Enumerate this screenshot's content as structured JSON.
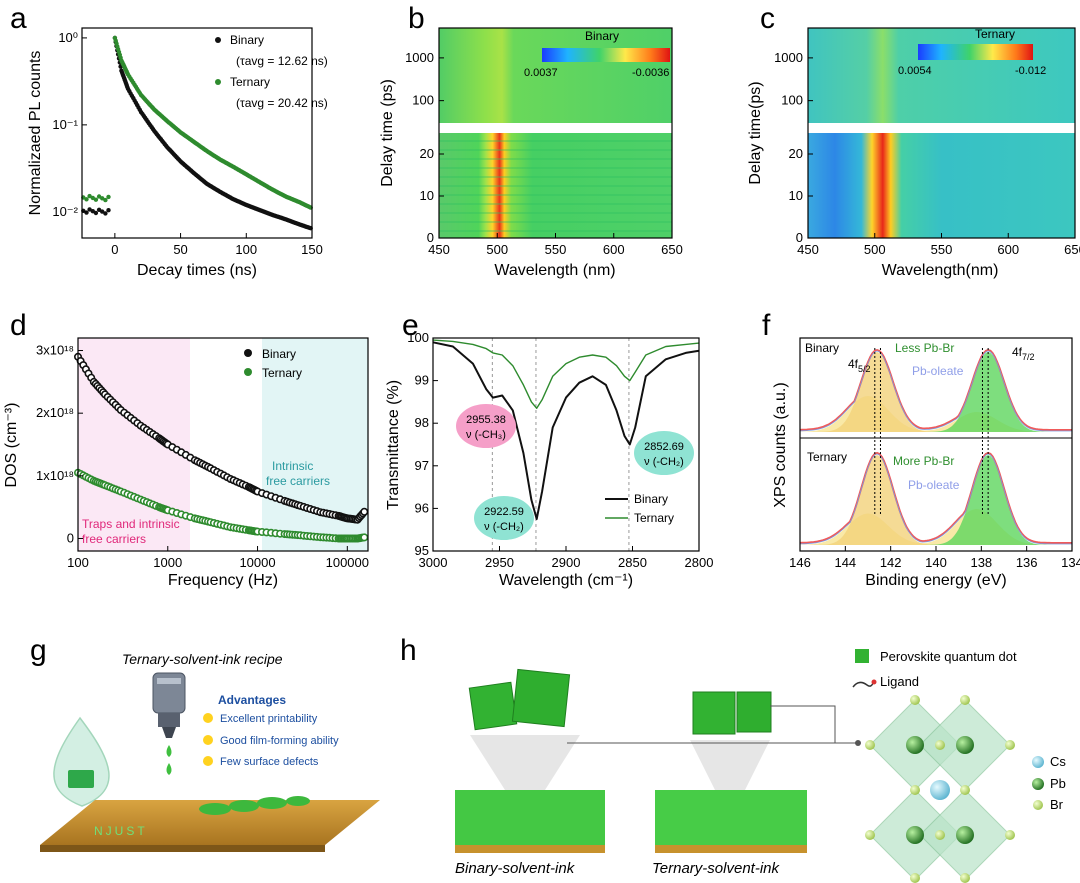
{
  "panel_letters": [
    "a",
    "b",
    "c",
    "d",
    "e",
    "f",
    "g",
    "h"
  ],
  "chart_data": [
    {
      "panel": "a",
      "type": "scatter",
      "xlabel": "Decay times (ns)",
      "ylabel": "Normalizaed PL counts",
      "xlim": [
        -25,
        150
      ],
      "ylim": [
        0.005,
        1.3
      ],
      "yscale": "log",
      "xticks": [
        "0",
        "50",
        "100",
        "150"
      ],
      "yticks": [
        "10⁻²",
        "10⁻¹",
        "10⁰"
      ],
      "series": [
        {
          "name": "Binary",
          "annotation": "(τavg = 12.62 ns)",
          "color": "#111111",
          "tau": 12.62,
          "x": [
            0,
            5,
            10,
            20,
            30,
            40,
            50,
            60,
            70,
            80,
            90,
            100,
            110,
            120,
            130,
            140,
            150
          ],
          "y": [
            1.0,
            0.42,
            0.26,
            0.14,
            0.085,
            0.055,
            0.038,
            0.028,
            0.021,
            0.017,
            0.014,
            0.012,
            0.0105,
            0.0092,
            0.0082,
            0.0072,
            0.0064
          ]
        },
        {
          "name": "Ternary",
          "annotation": "(τavg = 20.42 ns)",
          "color": "#2e8b2e",
          "tau": 20.42,
          "x": [
            0,
            5,
            10,
            20,
            30,
            40,
            50,
            60,
            70,
            80,
            90,
            100,
            110,
            120,
            130,
            140,
            150
          ],
          "y": [
            1.0,
            0.55,
            0.38,
            0.22,
            0.15,
            0.11,
            0.082,
            0.064,
            0.05,
            0.04,
            0.033,
            0.027,
            0.022,
            0.018,
            0.015,
            0.013,
            0.011
          ]
        }
      ],
      "pre_zero": {
        "binary_y": 0.0095,
        "ternary_y": 0.0135
      }
    },
    {
      "panel": "b",
      "type": "heatmap",
      "title": "Binary",
      "xlabel": "Wavelength (nm)",
      "ylabel": "Delay time (ps)",
      "xlim": [
        450,
        650
      ],
      "xticks": [
        "450",
        "500",
        "550",
        "600",
        "650"
      ],
      "yticks_lower": [
        "0",
        "10",
        "20"
      ],
      "yticks_upper": [
        "100",
        "1000"
      ],
      "colorbar": {
        "min_label": "0.0037",
        "max_label": "-0.0036"
      },
      "peak_nm": 503
    },
    {
      "panel": "c",
      "type": "heatmap",
      "title": "Ternary",
      "xlabel": "Wavelength(nm)",
      "ylabel": "Delay time(ps)",
      "xlim": [
        450,
        650
      ],
      "xticks": [
        "450",
        "500",
        "550",
        "600",
        "650"
      ],
      "yticks_lower": [
        "0",
        "10",
        "20"
      ],
      "yticks_upper": [
        "100",
        "1000"
      ],
      "colorbar": {
        "min_label": "0.0054",
        "max_label": "-0.012"
      },
      "peak_nm": 508
    },
    {
      "panel": "d",
      "type": "scatter",
      "xlabel": "Frequency (Hz)",
      "ylabel": "DOS (cm⁻³)",
      "xscale": "log",
      "xlim": [
        100,
        170000
      ],
      "ylim": [
        -0.2,
        3.2
      ],
      "xticks": [
        "100",
        "1000",
        "10000",
        "100000"
      ],
      "yticks": [
        "0",
        "1x10¹⁸",
        "2x10¹⁸",
        "3x10¹⁸"
      ],
      "regions": [
        "Traps and intrinsic free carriers",
        "Intrinsic free carriers"
      ],
      "series": [
        {
          "name": "Binary",
          "color": "#111111",
          "x": [
            100,
            150,
            200,
            300,
            500,
            800,
            1000,
            2000,
            3000,
            5000,
            8000,
            10000,
            20000,
            30000,
            50000,
            80000,
            100000,
            130000,
            160000
          ],
          "y": [
            2.9,
            2.5,
            2.3,
            2.05,
            1.8,
            1.6,
            1.5,
            1.25,
            1.12,
            0.95,
            0.82,
            0.75,
            0.6,
            0.52,
            0.42,
            0.36,
            0.32,
            0.3,
            0.45
          ]
        },
        {
          "name": "Ternary",
          "color": "#2e8b2e",
          "x": [
            100,
            150,
            200,
            300,
            500,
            800,
            1000,
            2000,
            3000,
            5000,
            8000,
            10000,
            20000,
            30000,
            50000,
            80000,
            100000,
            130000,
            160000
          ],
          "y": [
            1.05,
            0.92,
            0.85,
            0.75,
            0.62,
            0.5,
            0.45,
            0.32,
            0.26,
            0.18,
            0.13,
            0.11,
            0.07,
            0.05,
            0.02,
            0.0,
            0.0,
            0.0,
            0.02
          ]
        }
      ]
    },
    {
      "panel": "e",
      "type": "line",
      "xlabel": "Wavelength (cm⁻¹)",
      "ylabel": "Transmittance (%)",
      "xlim": [
        3000,
        2800
      ],
      "ylim": [
        95,
        100
      ],
      "xticks": [
        "3000",
        "2950",
        "2900",
        "2850",
        "2800"
      ],
      "yticks": [
        "95",
        "96",
        "97",
        "98",
        "99",
        "100"
      ],
      "peaks": [
        {
          "wn": "2955.38",
          "mode": "ν (-CH₃)"
        },
        {
          "wn": "2922.59",
          "mode": "ν (-CH₂)"
        },
        {
          "wn": "2852.69",
          "mode": "ν (-CH₂)"
        }
      ],
      "series": [
        {
          "name": "Binary",
          "color": "#111111",
          "x": [
            3000,
            2985,
            2970,
            2960,
            2955,
            2948,
            2940,
            2932,
            2926,
            2922,
            2918,
            2910,
            2900,
            2890,
            2880,
            2870,
            2862,
            2856,
            2852,
            2848,
            2840,
            2825,
            2810,
            2800
          ],
          "y": [
            99.9,
            99.8,
            99.4,
            98.8,
            98.6,
            98.65,
            98.3,
            97.3,
            96.2,
            95.75,
            96.4,
            97.9,
            98.6,
            98.95,
            99.1,
            98.9,
            98.3,
            97.7,
            97.5,
            97.9,
            99.1,
            99.5,
            99.65,
            99.7
          ]
        },
        {
          "name": "Ternary",
          "color": "#2e8b2e",
          "x": [
            3000,
            2985,
            2970,
            2960,
            2955,
            2948,
            2940,
            2932,
            2926,
            2922,
            2918,
            2910,
            2900,
            2890,
            2880,
            2870,
            2862,
            2856,
            2852,
            2848,
            2840,
            2825,
            2810,
            2800
          ],
          "y": [
            99.95,
            99.92,
            99.85,
            99.75,
            99.65,
            99.6,
            99.35,
            98.9,
            98.5,
            98.35,
            98.55,
            99.1,
            99.4,
            99.55,
            99.6,
            99.55,
            99.35,
            99.1,
            99.0,
            99.2,
            99.6,
            99.8,
            99.85,
            99.88
          ]
        }
      ]
    },
    {
      "panel": "f",
      "type": "line",
      "xlabel": "Binding energy (eV)",
      "ylabel": "XPS counts (a.u.)",
      "xlim": [
        146,
        134
      ],
      "xticks": [
        "146",
        "144",
        "142",
        "140",
        "138",
        "136",
        "134"
      ],
      "top": {
        "label": "Binary",
        "peaks": [
          "4f5/2",
          "4f7/2"
        ],
        "ann1": "Less Pb-Br",
        "ann2": "Pb-oleate"
      },
      "bottom": {
        "label": "Ternary",
        "ann1": "More Pb-Br",
        "ann2": "Pb-oleate"
      }
    }
  ],
  "panel_g": {
    "title": "Ternary-solvent-ink recipe",
    "advantages_title": "Advantages",
    "advantages": [
      "Excellent printability",
      "Good film-forming ability",
      "Few surface defects"
    ],
    "substrate_text": "NJUST"
  },
  "panel_h": {
    "legend": [
      "Perovskite quantum dot",
      "Ligand"
    ],
    "atoms": [
      "Cs",
      "Pb",
      "Br"
    ],
    "captions": [
      "Binary-solvent-ink",
      "Ternary-solvent-ink"
    ]
  }
}
